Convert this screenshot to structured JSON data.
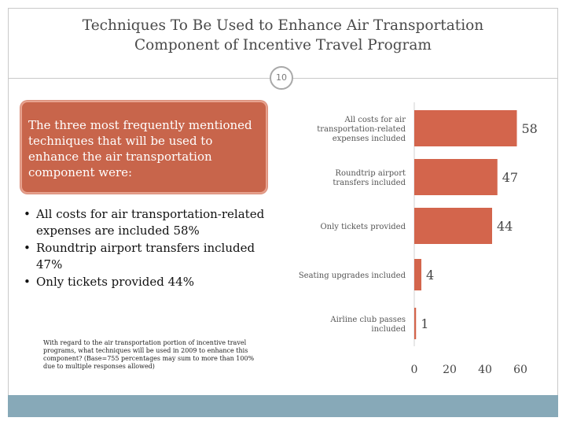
{
  "slide": {
    "title": "Techniques To Be Used to Enhance Air Transportation\nComponent of Incentive Travel Program",
    "page_number": "10",
    "callout_text": "The three most frequently mentioned techniques that will be used to enhance the air transportation component were:",
    "bullets": [
      "All costs for air transportation-related expenses are included 58%",
      "Roundtrip airport transfers included 47%",
      "Only tickets provided 44%"
    ],
    "footnote": "With regard to the air transportation portion of incentive travel programs, what techniques will be used in 2009 to enhance this component? (Base=755 percentages may sum to more than 100% due to multiple responses allowed)"
  },
  "colors": {
    "bar": "#d3654c",
    "callout": "#c8654b",
    "bottom_bar": "#87a9b8"
  },
  "chart_data": {
    "type": "bar",
    "orientation": "horizontal",
    "categories": [
      [
        "All costs for air",
        "transportation-related",
        "expenses included"
      ],
      [
        "Roundtrip airport",
        "transfers included"
      ],
      [
        "Only tickets provided"
      ],
      [
        "Seating upgrades included"
      ],
      [
        "Airline club passes",
        "included"
      ]
    ],
    "values": [
      58,
      47,
      44,
      4,
      1
    ],
    "value_labels": [
      "58",
      "47",
      "44",
      "4",
      "1"
    ],
    "xlim": [
      0,
      60
    ],
    "xticks": [
      0,
      20,
      40,
      60
    ],
    "xtick_labels": [
      "0",
      "20",
      "40",
      "60"
    ],
    "grid": false,
    "title": "",
    "xlabel": "",
    "ylabel": ""
  }
}
